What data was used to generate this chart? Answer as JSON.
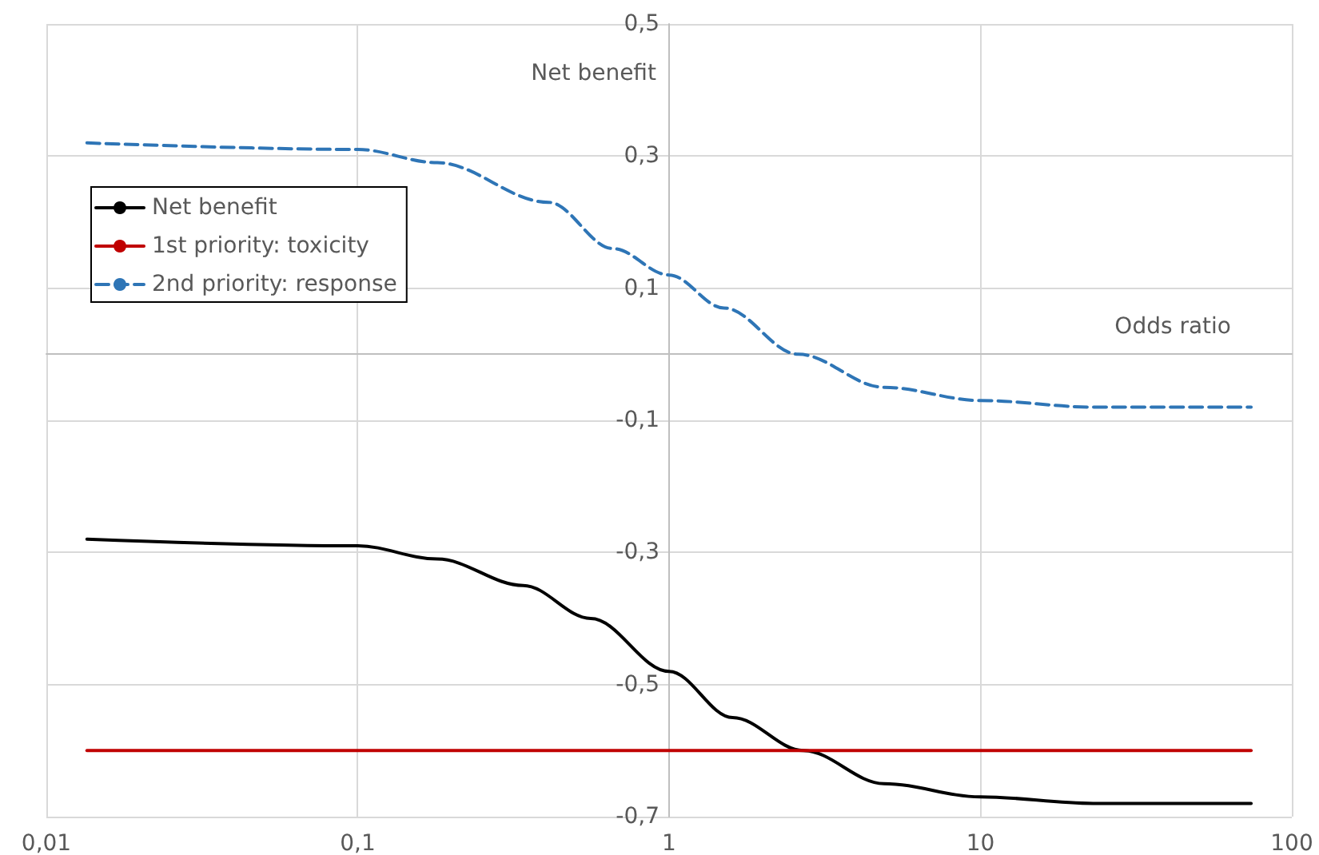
{
  "chart_data": {
    "type": "line",
    "xlabel": "Odds ratio",
    "ylabel": "Net benefit",
    "log": "x",
    "xlim": [
      0.01,
      100
    ],
    "xticks": [
      {
        "value": 0.01,
        "label": "0,01"
      },
      {
        "value": 0.1,
        "label": "0,1"
      },
      1,
      10,
      100
    ],
    "ylim": [
      -0.7,
      0.5
    ],
    "yticks": [
      {
        "value": -0.7,
        "label": "-0,7"
      },
      {
        "value": -0.5,
        "label": "-0,5"
      },
      {
        "value": -0.3,
        "label": "-0,3"
      },
      {
        "value": -0.1,
        "label": "-0,1"
      },
      {
        "value": 0.1,
        "label": "0,1"
      },
      {
        "value": 0.3,
        "label": "0,3"
      },
      {
        "value": 0.5,
        "label": "0,5"
      }
    ],
    "grid": true,
    "legend": "top left",
    "marker": "none",
    "series": [
      {
        "name": "Net benefit",
        "color": "#000000",
        "line_style": "solid",
        "x": [
          0.0135,
          0.1,
          0.18,
          0.34,
          0.56,
          1,
          1.6,
          2.7,
          4.9,
          10,
          23,
          74
        ],
        "values": [
          -0.28,
          -0.29,
          -0.31,
          -0.35,
          -0.4,
          -0.48,
          -0.55,
          -0.6,
          -0.65,
          -0.67,
          -0.68,
          -0.68
        ]
      },
      {
        "name": "1st priority: toxicity",
        "color": "#c00000",
        "line_style": "solid",
        "x": [
          0.0135,
          74
        ],
        "values": [
          -0.6,
          -0.6
        ]
      },
      {
        "name": "2nd priority: response",
        "color": "#2e75b6",
        "line_style": "dashed",
        "x": [
          0.0135,
          0.1,
          0.18,
          0.41,
          0.66,
          1,
          1.5,
          2.6,
          4.9,
          10,
          23,
          74
        ],
        "values": [
          0.32,
          0.31,
          0.29,
          0.23,
          0.16,
          0.12,
          0.07,
          0,
          -0.05,
          -0.07,
          -0.08,
          -0.08
        ]
      }
    ]
  }
}
